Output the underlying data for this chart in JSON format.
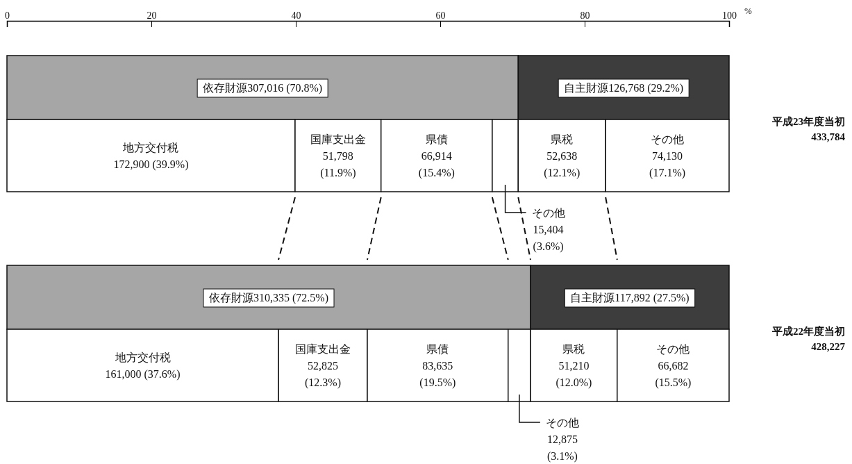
{
  "chart_data": {
    "type": "bar",
    "orientation": "horizontal",
    "stacked": true,
    "xlabel": "%",
    "xlim": [
      0,
      100
    ],
    "xticks": [
      0,
      20,
      40,
      60,
      80,
      100
    ],
    "grid": false,
    "categories": [
      null,
      "平成23年度当初\n433,784",
      null,
      "平成22年度当初\n428,227"
    ],
    "series": [
      {
        "color": "#a6a6a6",
        "values": [
          70.8,
          null,
          72.5,
          null
        ],
        "value_labels": [
          "依存財源307,016 (70.8%)",
          null,
          "依存財源310,335 (72.5%)",
          null
        ]
      },
      {
        "color": "#3d3d3d",
        "values": [
          29.2,
          null,
          27.5,
          null
        ],
        "value_labels": [
          "自主財源126,768 (29.2%)",
          null,
          "自主財源117,892 (27.5%)",
          null
        ]
      },
      {
        "color": "#ffffff",
        "values": [
          null,
          39.9,
          null,
          37.6
        ],
        "value_labels": [
          null,
          "地方交付税\n172,900 (39.9%)",
          null,
          "地方交付税\n161,000 (37.6%)"
        ]
      },
      {
        "color": "#ffffff",
        "values": [
          null,
          11.9,
          null,
          12.3
        ],
        "value_labels": [
          null,
          "国庫支出金\n51,798\n(11.9%)",
          null,
          "国庫支出金\n52,825\n(12.3%)"
        ]
      },
      {
        "color": "#ffffff",
        "values": [
          null,
          15.4,
          null,
          19.5
        ],
        "value_labels": [
          null,
          "県債\n66,914\n(15.4%)",
          null,
          "県債\n83,635\n(19.5%)"
        ]
      },
      {
        "color": "#ffffff",
        "values": [
          null,
          3.6,
          null,
          3.1
        ],
        "value_labels": [
          null,
          "その他\n15,404\n(3.6%)",
          null,
          "その他\n12,875\n(3.1%)"
        ]
      },
      {
        "color": "#ffffff",
        "values": [
          null,
          12.1,
          null,
          12.0
        ],
        "value_labels": [
          null,
          "県税\n52,638\n(12.1%)",
          null,
          "県税\n51,210\n(12.0%)"
        ]
      },
      {
        "color": "#ffffff",
        "values": [
          null,
          17.1,
          null,
          15.5
        ],
        "value_labels": [
          null,
          "その他\n74,130\n(17.1%)",
          null,
          "その他\n66,682\n(15.5%)"
        ]
      }
    ]
  }
}
